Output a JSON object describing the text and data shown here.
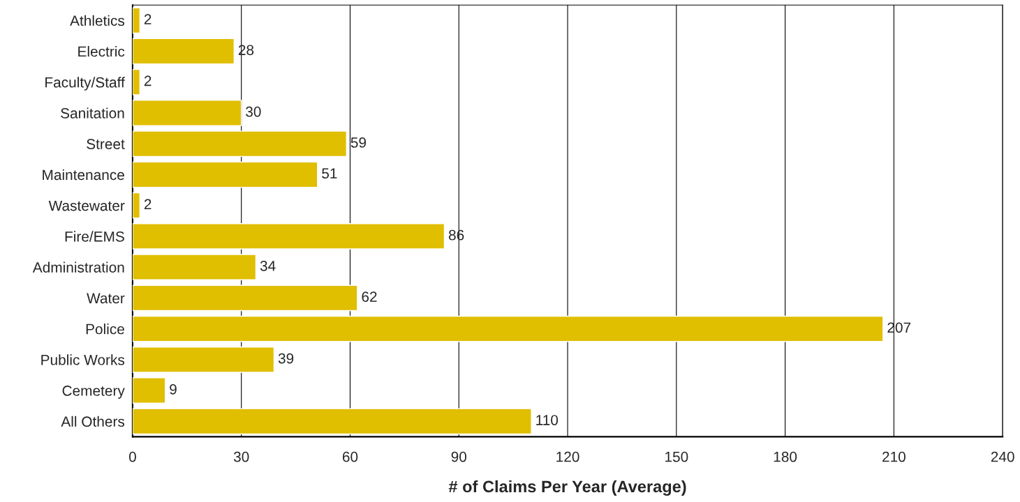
{
  "chart_data": {
    "type": "bar",
    "orientation": "horizontal",
    "xlabel": "# of Claims Per Year (Average)",
    "categories": [
      "Athletics",
      "Electric",
      "Faculty/Staff",
      "Sanitation",
      "Street",
      "Maintenance",
      "Wastewater",
      "Fire/EMS",
      "Administration",
      "Water",
      "Police",
      "Public Works",
      "Cemetery",
      "All Others"
    ],
    "values": [
      2,
      28,
      2,
      30,
      59,
      51,
      2,
      86,
      34,
      62,
      207,
      39,
      9,
      110
    ],
    "color": "#e0be00",
    "xlim": [
      0,
      240
    ],
    "xticks": [
      0,
      30,
      60,
      90,
      120,
      150,
      180,
      210,
      240
    ],
    "grid": "x",
    "data_labels": true
  }
}
